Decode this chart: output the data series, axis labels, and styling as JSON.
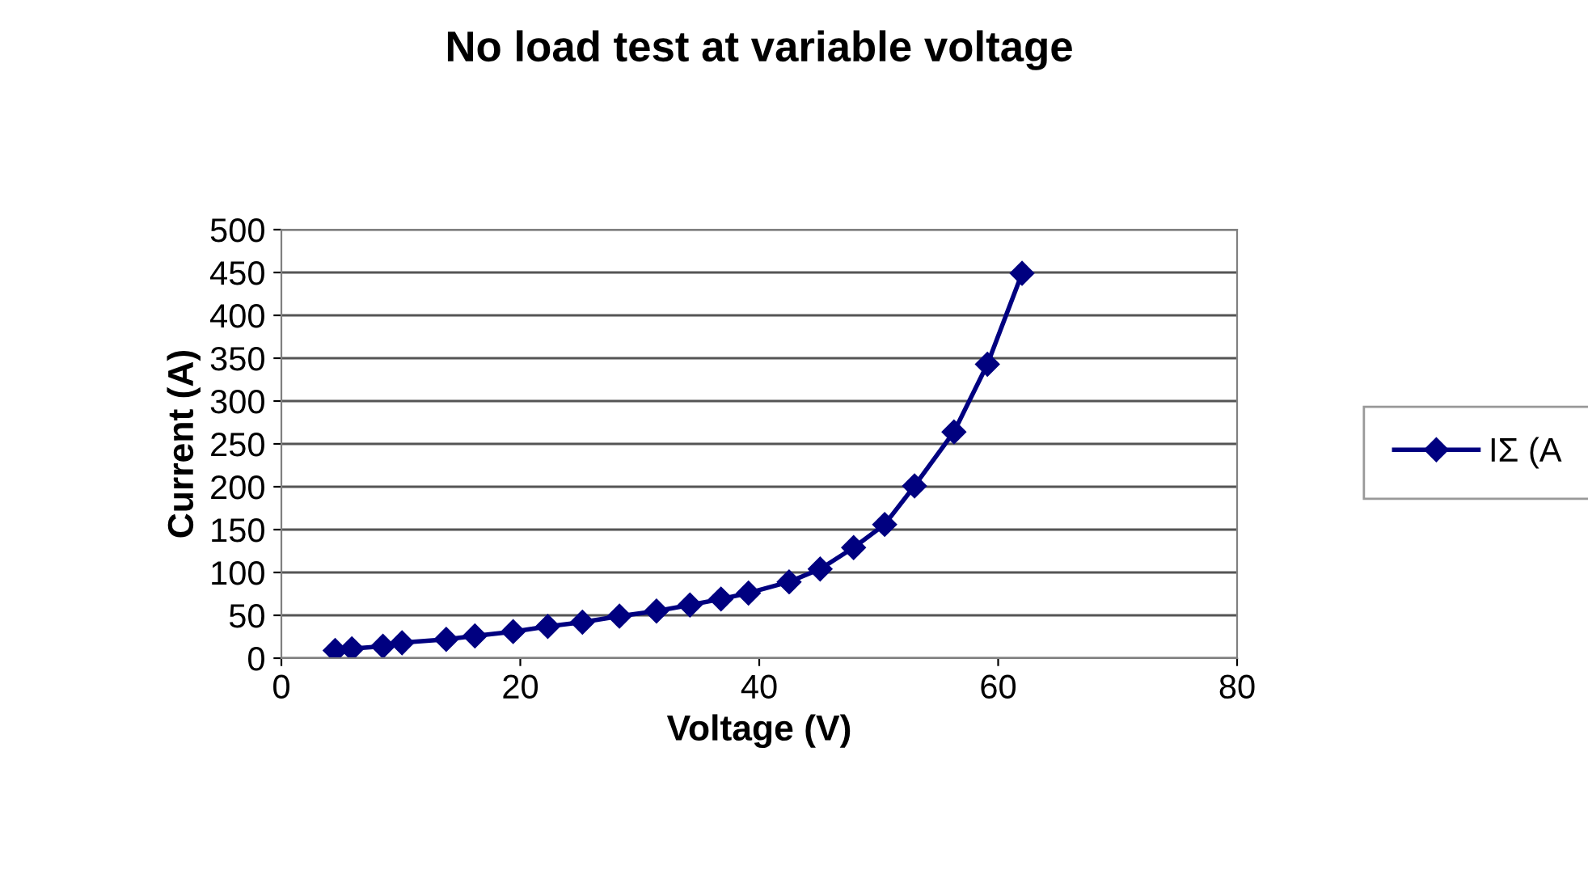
{
  "chart_data": {
    "type": "line",
    "title": "No load test at variable voltage",
    "xlabel": "Voltage (V)",
    "ylabel": "Current (A)",
    "x": [
      4.5,
      5.9,
      8.5,
      10.1,
      13.8,
      16.2,
      19.4,
      22.3,
      25.2,
      28.3,
      31.4,
      34.2,
      36.8,
      39.1,
      42.5,
      45.1,
      47.9,
      50.5,
      53.0,
      56.3,
      59.1,
      62.0
    ],
    "series": [
      {
        "name": "IΣ (A",
        "color": "#000080",
        "values": [
          9,
          11,
          14,
          18,
          22,
          26,
          31,
          37,
          42,
          49,
          55,
          62,
          69,
          76,
          89,
          104,
          129,
          156,
          201,
          264,
          343,
          449
        ]
      }
    ],
    "xlim": [
      0,
      80
    ],
    "xticks": [
      0,
      20,
      40,
      60,
      80
    ],
    "ylim": [
      0,
      500
    ],
    "yticks": [
      0,
      50,
      100,
      150,
      200,
      250,
      300,
      350,
      400,
      450,
      500
    ],
    "grid": "y",
    "legend": "right",
    "marker": "diamond",
    "line_style": "solid"
  }
}
